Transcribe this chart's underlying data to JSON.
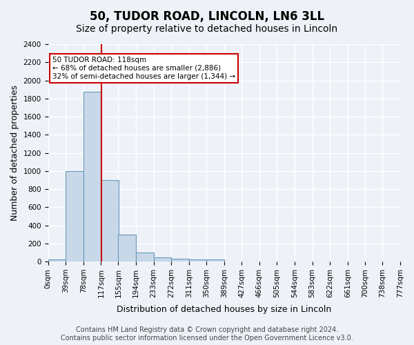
{
  "title": "50, TUDOR ROAD, LINCOLN, LN6 3LL",
  "subtitle": "Size of property relative to detached houses in Lincoln",
  "xlabel": "Distribution of detached houses by size in Lincoln",
  "ylabel": "Number of detached properties",
  "bin_labels": [
    "0sqm",
    "39sqm",
    "78sqm",
    "117sqm",
    "155sqm",
    "194sqm",
    "233sqm",
    "272sqm",
    "311sqm",
    "350sqm",
    "389sqm",
    "427sqm",
    "466sqm",
    "505sqm",
    "544sqm",
    "583sqm",
    "622sqm",
    "661sqm",
    "700sqm",
    "738sqm",
    "777sqm"
  ],
  "bin_edges": [
    0,
    39,
    78,
    117,
    155,
    194,
    233,
    272,
    311,
    350,
    389,
    427,
    466,
    505,
    544,
    583,
    622,
    661,
    700,
    738,
    777
  ],
  "bar_heights": [
    20,
    1000,
    1875,
    900,
    300,
    100,
    45,
    30,
    25,
    25,
    0,
    0,
    0,
    0,
    0,
    0,
    0,
    0,
    0,
    0
  ],
  "bar_color": "#c8d8e8",
  "bar_edge_color": "#6699bb",
  "property_size": 118,
  "vline_color": "#cc0000",
  "annotation_text": "50 TUDOR ROAD: 118sqm\n← 68% of detached houses are smaller (2,886)\n32% of semi-detached houses are larger (1,344) →",
  "annotation_box_color": "#ffffff",
  "annotation_box_edge": "#cc0000",
  "ylim": [
    0,
    2400
  ],
  "yticks": [
    0,
    200,
    400,
    600,
    800,
    1000,
    1200,
    1400,
    1600,
    1800,
    2000,
    2200,
    2400
  ],
  "footer_text": "Contains HM Land Registry data © Crown copyright and database right 2024.\nContains public sector information licensed under the Open Government Licence v3.0.",
  "bg_color": "#eef2f8",
  "grid_color": "#ffffff",
  "title_fontsize": 12,
  "subtitle_fontsize": 10,
  "axis_label_fontsize": 9,
  "tick_fontsize": 7.5,
  "footer_fontsize": 7
}
